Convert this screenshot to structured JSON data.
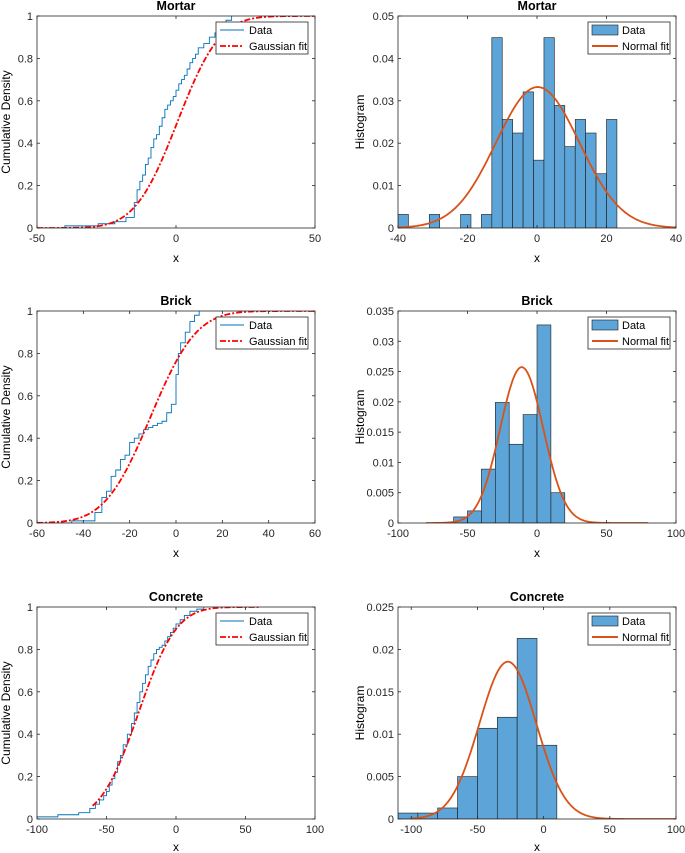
{
  "chart_data": [
    {
      "type": "line",
      "title": "Mortar",
      "xlabel": "x",
      "ylabel": "Cumulative Density",
      "xlim": [
        -50,
        50
      ],
      "ylim": [
        0,
        1
      ],
      "xticks": [
        -50,
        0,
        50
      ],
      "xtick_labels": [
        "-50",
        "0",
        "50"
      ],
      "yticks": [
        0,
        0.2,
        0.4,
        0.6,
        0.8,
        1
      ],
      "ytick_labels": [
        "0",
        "0.2",
        "0.4",
        "0.6",
        "0.8",
        "1"
      ],
      "legend": [
        "Data",
        "Gaussian fit"
      ],
      "legend_position": "top-right",
      "series": [
        {
          "name": "Data",
          "style": "step",
          "color": "#0072BD",
          "x": [
            -40,
            -28,
            -22,
            -18,
            -15,
            -14,
            -13,
            -12,
            -11,
            -10,
            -9,
            -8,
            -7,
            -6,
            -5,
            -4,
            -3,
            -2,
            -1,
            0,
            1,
            2,
            3,
            4,
            5,
            6,
            7,
            8,
            10,
            12,
            14,
            15,
            16,
            18,
            20
          ],
          "y": [
            0.01,
            0.02,
            0.03,
            0.05,
            0.12,
            0.18,
            0.22,
            0.25,
            0.3,
            0.33,
            0.38,
            0.42,
            0.44,
            0.48,
            0.52,
            0.56,
            0.58,
            0.6,
            0.62,
            0.65,
            0.68,
            0.7,
            0.72,
            0.75,
            0.78,
            0.8,
            0.82,
            0.85,
            0.87,
            0.9,
            0.92,
            0.94,
            0.96,
            0.98,
            1.0
          ]
        },
        {
          "name": "Gaussian fit",
          "style": "dashdot",
          "color": "#FF0000",
          "model": "normal_cdf",
          "mu": 0.5,
          "sigma": 12,
          "x_range": [
            -50,
            50
          ],
          "x": [],
          "y": []
        }
      ]
    },
    {
      "type": "bar",
      "title": "Mortar",
      "xlabel": "x",
      "ylabel": "Histogram",
      "xlim": [
        -40,
        40
      ],
      "ylim": [
        0,
        0.05
      ],
      "xticks": [
        -40,
        -20,
        0,
        20,
        40
      ],
      "xtick_labels": [
        "-40",
        "-20",
        "0",
        "20",
        "40"
      ],
      "yticks": [
        0,
        0.01,
        0.02,
        0.03,
        0.04,
        0.05
      ],
      "ytick_labels": [
        "0",
        "0.01",
        "0.02",
        "0.03",
        "0.04",
        "0.05"
      ],
      "legend": [
        "Data",
        "Normal fit"
      ],
      "legend_position": "top-right",
      "bin_edges": [
        -40,
        -37,
        -34,
        -31,
        -28,
        -25,
        -22,
        -19,
        -16,
        -13,
        -10,
        -7,
        -4,
        -1,
        2,
        5,
        8,
        11,
        14,
        17,
        20,
        23
      ],
      "values": [
        0.0032,
        0,
        0,
        0.0032,
        0,
        0,
        0.0032,
        0,
        0.0032,
        0.0449,
        0.0256,
        0.0224,
        0.0321,
        0.016,
        0.0449,
        0.0289,
        0.0192,
        0.0256,
        0.0224,
        0.0128,
        0.0256
      ],
      "series": [
        {
          "name": "Data",
          "style": "bar",
          "color": "#5DA5D8"
        },
        {
          "name": "Normal fit",
          "style": "line",
          "color": "#D95319",
          "model": "normal_pdf",
          "mu": 0.2,
          "sigma": 12,
          "x_range": [
            -40,
            40
          ],
          "x": [],
          "y": []
        }
      ]
    },
    {
      "type": "line",
      "title": "Brick",
      "xlabel": "x",
      "ylabel": "Cumulative Density",
      "xlim": [
        -60,
        60
      ],
      "ylim": [
        0,
        1
      ],
      "xticks": [
        -60,
        -40,
        -20,
        0,
        20,
        40,
        60
      ],
      "xtick_labels": [
        "-60",
        "-40",
        "-20",
        "0",
        "20",
        "40",
        "60"
      ],
      "yticks": [
        0,
        0.2,
        0.4,
        0.6,
        0.8,
        1
      ],
      "ytick_labels": [
        "0",
        "0.2",
        "0.4",
        "0.6",
        "0.8",
        "1"
      ],
      "legend": [
        "Data",
        "Gaussian fit"
      ],
      "legend_position": "top-right",
      "series": [
        {
          "name": "Data",
          "style": "step",
          "color": "#0072BD",
          "x": [
            -45,
            -35,
            -32,
            -30,
            -28,
            -26,
            -24,
            -22,
            -20,
            -18,
            -16,
            -14,
            -12,
            -10,
            -8,
            -6,
            -4,
            -2,
            0,
            1,
            2,
            4,
            6,
            8,
            10
          ],
          "y": [
            0.01,
            0.05,
            0.12,
            0.15,
            0.22,
            0.25,
            0.3,
            0.32,
            0.38,
            0.4,
            0.42,
            0.44,
            0.45,
            0.46,
            0.47,
            0.48,
            0.52,
            0.56,
            0.7,
            0.8,
            0.85,
            0.9,
            0.95,
            0.98,
            1.0
          ]
        },
        {
          "name": "Gaussian fit",
          "style": "dashdot",
          "color": "#FF0000",
          "model": "normal_cdf",
          "mu": -11,
          "sigma": 15.5,
          "x_range": [
            -60,
            60
          ],
          "x": [],
          "y": []
        }
      ]
    },
    {
      "type": "bar",
      "title": "Brick",
      "xlabel": "x",
      "ylabel": "Histogram",
      "xlim": [
        -100,
        100
      ],
      "ylim": [
        0,
        0.035
      ],
      "xticks": [
        -100,
        -50,
        0,
        50,
        100
      ],
      "xtick_labels": [
        "-100",
        "-50",
        "0",
        "50",
        "100"
      ],
      "yticks": [
        0,
        0.005,
        0.01,
        0.015,
        0.02,
        0.025,
        0.03,
        0.035
      ],
      "ytick_labels": [
        "0",
        "0.005",
        "0.01",
        "0.015",
        "0.02",
        "0.025",
        "0.03",
        "0.035"
      ],
      "legend": [
        "Data",
        "Normal fit"
      ],
      "legend_position": "top-right",
      "bin_edges": [
        -60,
        -50,
        -40,
        -30,
        -20,
        -10,
        0,
        10,
        20
      ],
      "values": [
        0.001,
        0.002,
        0.0089,
        0.0199,
        0.013,
        0.0179,
        0.0327,
        0.005
      ],
      "series": [
        {
          "name": "Data",
          "style": "bar",
          "color": "#5DA5D8"
        },
        {
          "name": "Normal fit",
          "style": "line",
          "color": "#D95319",
          "model": "normal_pdf",
          "mu": -11,
          "sigma": 15.5,
          "x_range": [
            -80,
            80
          ],
          "x": [],
          "y": []
        }
      ]
    },
    {
      "type": "line",
      "title": "Concrete",
      "xlabel": "x",
      "ylabel": "Cumulative Density",
      "xlim": [
        -100,
        100
      ],
      "ylim": [
        0,
        1
      ],
      "xticks": [
        -100,
        -50,
        0,
        50,
        100
      ],
      "xtick_labels": [
        "-100",
        "-50",
        "0",
        "50",
        "100"
      ],
      "yticks": [
        0,
        0.2,
        0.4,
        0.6,
        0.8,
        1
      ],
      "ytick_labels": [
        "0",
        "0.2",
        "0.4",
        "0.6",
        "0.8",
        "1"
      ],
      "legend": [
        "Data",
        "Gaussian fit"
      ],
      "legend_position": "top-right",
      "series": [
        {
          "name": "Data",
          "style": "step",
          "color": "#0072BD",
          "x": [
            -100,
            -85,
            -70,
            -62,
            -58,
            -55,
            -52,
            -50,
            -48,
            -46,
            -44,
            -42,
            -40,
            -38,
            -35,
            -32,
            -30,
            -28,
            -26,
            -24,
            -22,
            -20,
            -18,
            -16,
            -14,
            -12,
            -10,
            -8,
            -6,
            -4,
            -2,
            0,
            3,
            6,
            10,
            15,
            20
          ],
          "y": [
            0.01,
            0.02,
            0.03,
            0.05,
            0.07,
            0.09,
            0.11,
            0.13,
            0.16,
            0.19,
            0.22,
            0.27,
            0.3,
            0.35,
            0.4,
            0.45,
            0.5,
            0.55,
            0.6,
            0.64,
            0.68,
            0.72,
            0.75,
            0.78,
            0.8,
            0.81,
            0.82,
            0.84,
            0.86,
            0.88,
            0.9,
            0.92,
            0.94,
            0.96,
            0.98,
            0.99,
            1.0
          ]
        },
        {
          "name": "Gaussian fit",
          "style": "dashdot",
          "color": "#FF0000",
          "model": "normal_cdf",
          "mu": -27,
          "sigma": 21.5,
          "x_range": [
            -60,
            60
          ],
          "x": [],
          "y": []
        }
      ]
    },
    {
      "type": "bar",
      "title": "Concrete",
      "xlabel": "x",
      "ylabel": "Histogram",
      "xlim": [
        -110,
        100
      ],
      "ylim": [
        0,
        0.025
      ],
      "xticks": [
        -100,
        -50,
        0,
        50,
        100
      ],
      "xtick_labels": [
        "-100",
        "-50",
        "0",
        "50",
        "100"
      ],
      "yticks": [
        0,
        0.005,
        0.01,
        0.015,
        0.02,
        0.025
      ],
      "ytick_labels": [
        "0",
        "0.005",
        "0.01",
        "0.015",
        "0.02",
        "0.025"
      ],
      "legend": [
        "Data",
        "Normal fit"
      ],
      "legend_position": "top-right",
      "bin_edges": [
        -110,
        -95,
        -80,
        -65,
        -50,
        -35,
        -20,
        -5,
        10
      ],
      "values": [
        0.0007,
        0.0007,
        0.0013,
        0.005,
        0.0107,
        0.012,
        0.0213,
        0.0087
      ],
      "series": [
        {
          "name": "Data",
          "style": "bar",
          "color": "#5DA5D8"
        },
        {
          "name": "Normal fit",
          "style": "line",
          "color": "#D95319",
          "model": "normal_pdf",
          "mu": -27,
          "sigma": 21.5,
          "x_range": [
            -100,
            100
          ],
          "x": [],
          "y": []
        }
      ]
    }
  ]
}
